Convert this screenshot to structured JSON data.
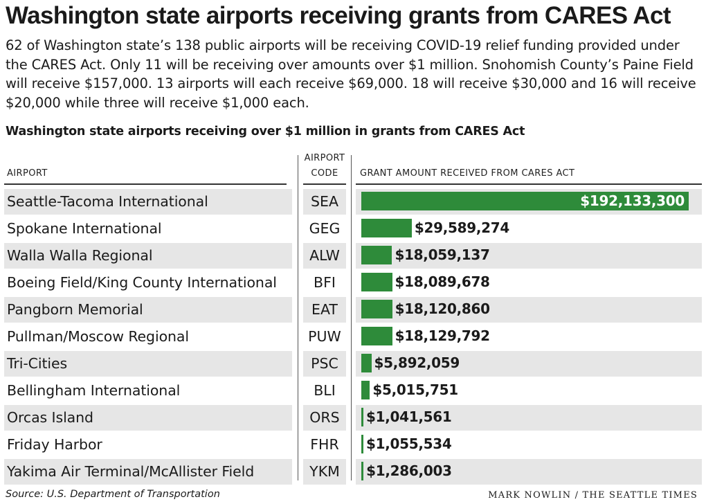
{
  "title": "Washington state airports receiving grants from CARES Act",
  "intro": "62 of Washington state’s 138 public airports will be receiving COVID-19 relief funding provided under the CARES Act.  Only 11 will be receiving over amounts over $1 million. Snohomish County’s Paine Field will receive $157,000. 13 airports will each receive $69,000. 18 will receive $30,000 and 16 will receive $20,000 while three will receive $1,000 each.",
  "subtitle": "Washington state airports receiving over $1 million in grants from CARES Act",
  "columns": {
    "airport": "AIRPORT",
    "code_line1": "AIRPORT",
    "code_line2": "CODE",
    "amount": "GRANT AMOUNT RECEIVED FROM CARES ACT"
  },
  "colors": {
    "bar": "#2e8b3a",
    "band": "#e6e6e6"
  },
  "chart_data": {
    "type": "bar",
    "title": "Washington state airports receiving over $1 million in grants from CARES Act",
    "orientation": "horizontal",
    "categories": [
      "Seattle-Tacoma International",
      "Spokane International",
      "Walla Walla Regional",
      "Boeing Field/King County International",
      "Pangborn Memorial",
      "Pullman/Moscow Regional",
      "Tri-Cities",
      "Bellingham International",
      "Orcas Island",
      "Friday Harbor",
      "Yakima Air Terminal/McAllister Field"
    ],
    "codes": [
      "SEA",
      "GEG",
      "ALW",
      "BFI",
      "EAT",
      "PUW",
      "PSC",
      "BLI",
      "ORS",
      "FHR",
      "YKM"
    ],
    "values": [
      192133300,
      29589274,
      18059137,
      18089678,
      18120860,
      18129792,
      5892059,
      5015751,
      1041561,
      1055534,
      1286003
    ],
    "value_labels": [
      "$192,133,300",
      "$29,589,274",
      "$18,059,137",
      "$18,089,678",
      "$18,120,860",
      "$18,129,792",
      "$5,892,059",
      "$5,015,751",
      "$1,041,561",
      "$1,055,534",
      "$1,286,003"
    ],
    "series": [
      {
        "values": [
          192133300,
          29589274,
          18059137,
          18089678,
          18120860,
          18129792,
          5892059,
          5015751,
          1041561,
          1055534,
          1286003
        ]
      }
    ]
  },
  "footer": {
    "source": "Source: U.S. Department of Transportation",
    "credit": "MARK NOWLIN / THE SEATTLE TIMES"
  }
}
